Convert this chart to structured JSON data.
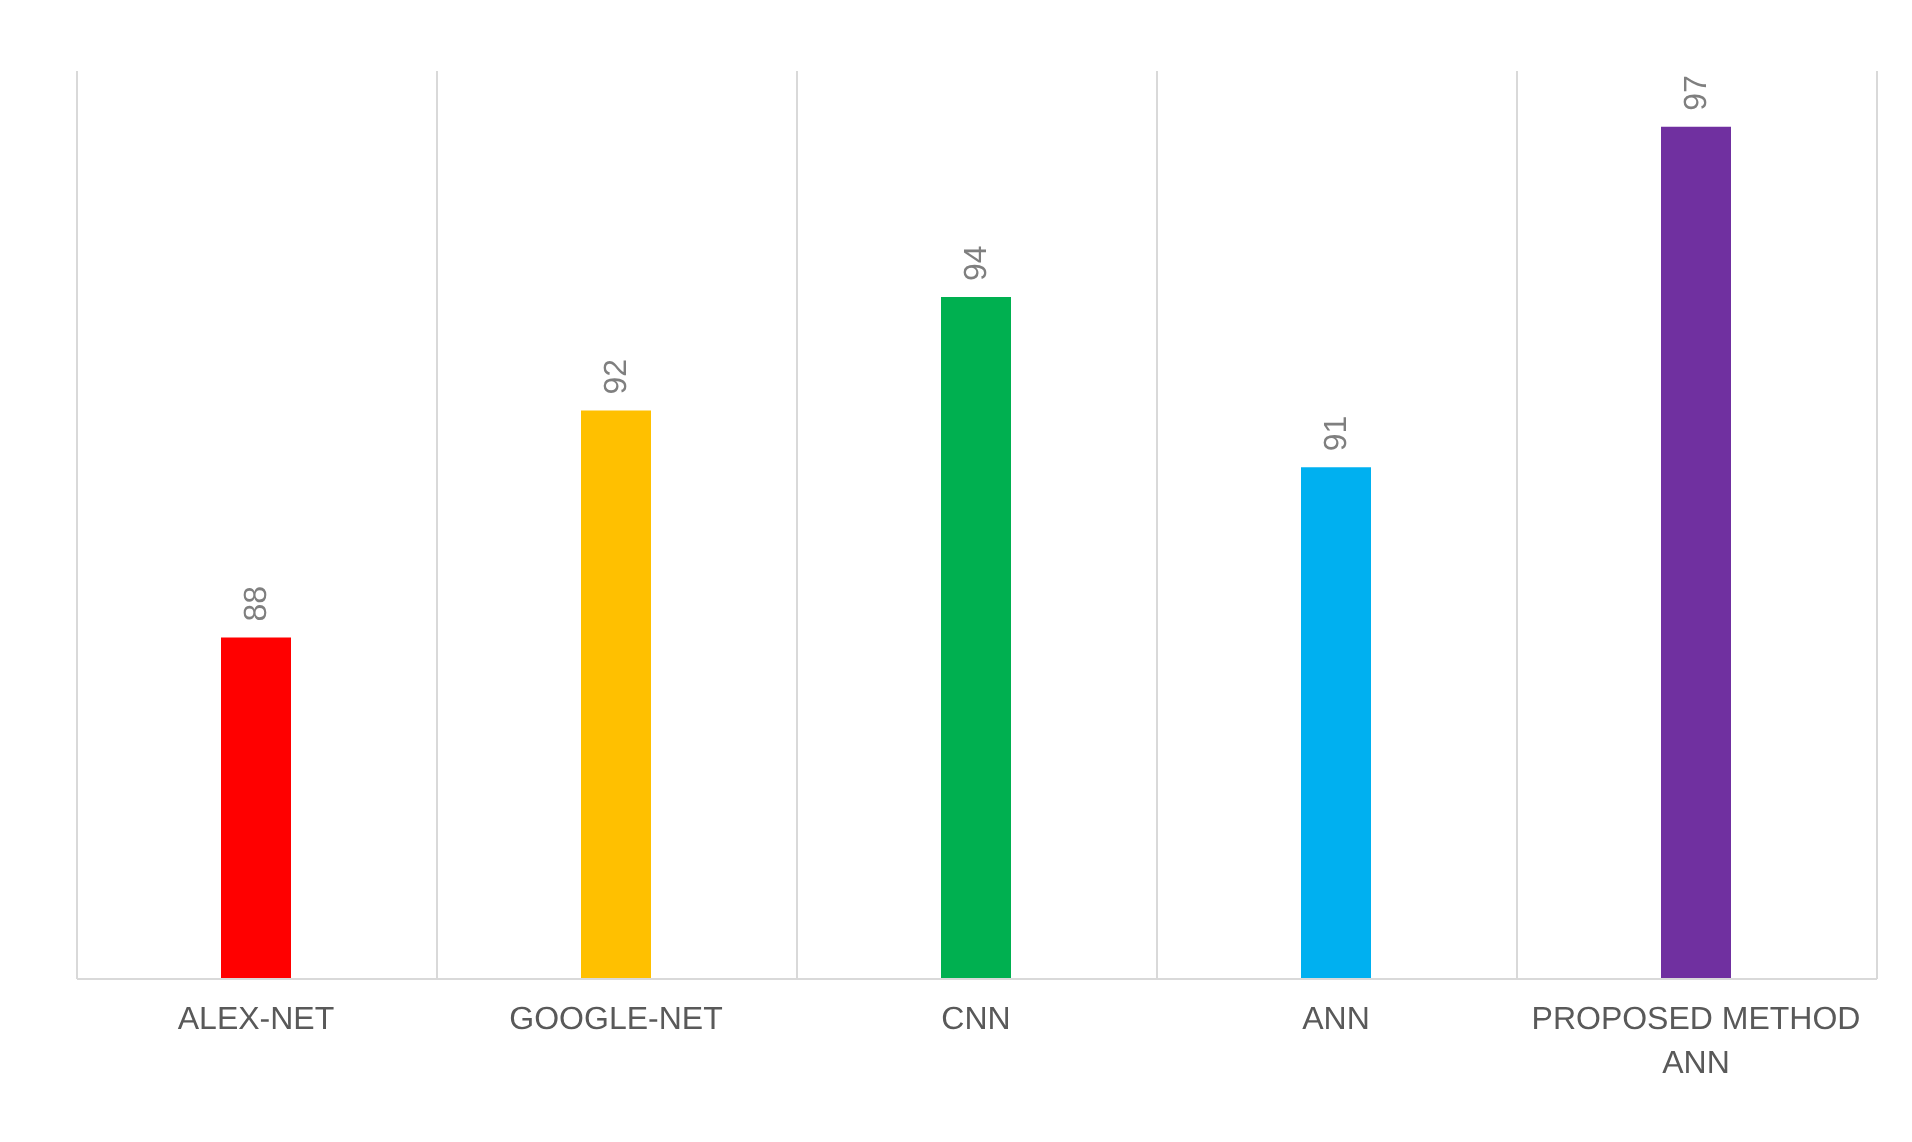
{
  "chart_data": {
    "type": "bar",
    "categories": [
      "ALEX-NET",
      "GOOGLE-NET",
      "CNN",
      "ANN",
      "PROPOSED METHOD ANN"
    ],
    "values": [
      88,
      92,
      94,
      91,
      97
    ],
    "colors": [
      "#ff0000",
      "#ffc000",
      "#00b050",
      "#00b0f0",
      "#7030a0"
    ],
    "ylim": [
      82,
      98
    ],
    "data_labels": true,
    "grid": "x",
    "tick_labels": "x"
  }
}
